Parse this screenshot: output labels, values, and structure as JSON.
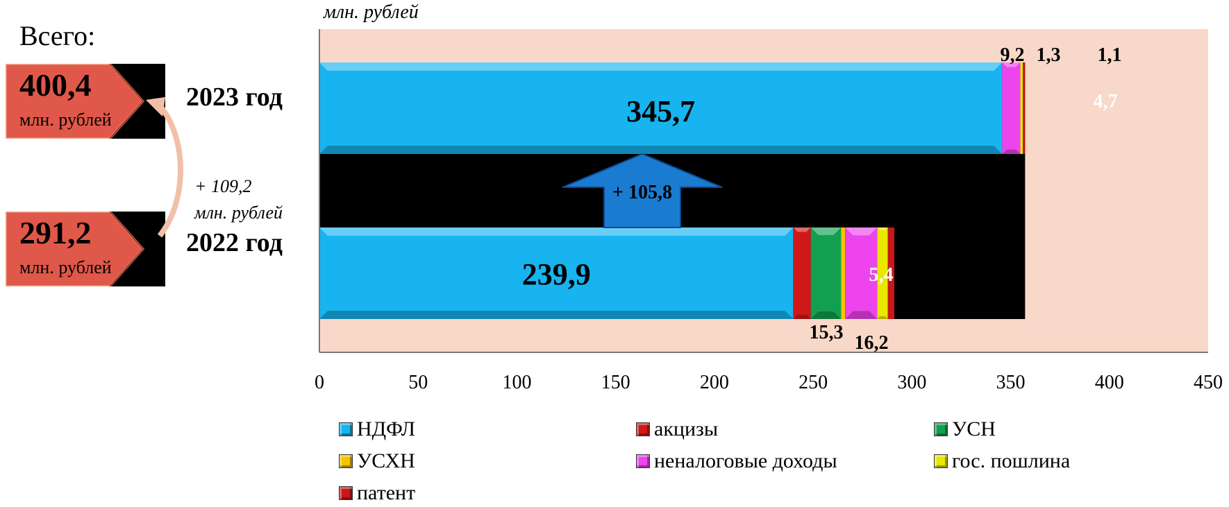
{
  "left_panel": {
    "total_label": "Всего:",
    "totals": [
      {
        "value": "400,4",
        "unit": "млн. рублей",
        "year": "2023 год"
      },
      {
        "value": "291,2",
        "unit": "млн. рублей",
        "year": "2022 год"
      }
    ],
    "difference": {
      "value": "+ 109,2",
      "unit": "млн. рублей"
    }
  },
  "unit_label": "млн. рублей",
  "change_arrow_label": "+ 105,8",
  "colors": {
    "plot_background": "#f8d8c8",
    "bar_background": "#000000",
    "box_fill": "#e0584a",
    "box_border": "#f0a890",
    "arrow": "#1a7cd0"
  },
  "chart_data": {
    "type": "bar",
    "orientation": "horizontal",
    "stacked": true,
    "categories": [
      "2023 год",
      "2022 год"
    ],
    "xlim": [
      0,
      450
    ],
    "xticks": [
      "0",
      "50",
      "100",
      "150",
      "200",
      "250",
      "300",
      "350",
      "400",
      "450"
    ],
    "series": [
      {
        "name": "НДФЛ",
        "color": "#17b4f0",
        "values": [
          345.7,
          239.9
        ],
        "labels": [
          "345,7",
          "239,9"
        ]
      },
      {
        "name": "акцизы",
        "color": "#d01818",
        "values": [
          null,
          8.9
        ],
        "labels": [
          "",
          ""
        ]
      },
      {
        "name": "УСН",
        "color": "#12a050",
        "values": [
          null,
          15.3
        ],
        "labels": [
          "",
          "15,3"
        ]
      },
      {
        "name": "УСХН",
        "color": "#f4c400",
        "values": [
          null,
          2.1
        ],
        "labels": [
          "",
          ""
        ]
      },
      {
        "name": "неналоговые доходы",
        "color": "#ee44ee",
        "values": [
          9.2,
          16.2
        ],
        "labels": [
          "9,2",
          "16,2"
        ]
      },
      {
        "name": "гос. пошлина",
        "color": "#e8e800",
        "values": [
          1.3,
          5.4
        ],
        "labels": [
          "1,3",
          "5,4"
        ]
      },
      {
        "name": "патент",
        "color": "#c81818",
        "values": [
          1.1,
          3.3
        ],
        "labels": [
          "1,1",
          ""
        ]
      }
    ],
    "extra_labels_2023": [
      "4,7"
    ],
    "grid": false,
    "legend_position": "bottom"
  }
}
